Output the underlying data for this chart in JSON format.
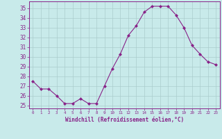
{
  "x": [
    0,
    1,
    2,
    3,
    4,
    5,
    6,
    7,
    8,
    9,
    10,
    11,
    12,
    13,
    14,
    15,
    16,
    17,
    18,
    19,
    20,
    21,
    22,
    23
  ],
  "y": [
    27.5,
    26.7,
    26.7,
    26.0,
    25.2,
    25.2,
    25.7,
    25.2,
    25.2,
    27.0,
    28.8,
    30.3,
    32.2,
    33.2,
    34.6,
    35.2,
    35.2,
    35.2,
    34.3,
    33.0,
    31.2,
    30.3,
    29.5,
    29.2
  ],
  "line_color": "#882288",
  "marker": "D",
  "marker_size": 2.0,
  "bg_color": "#c8eaea",
  "grid_color": "#aacccc",
  "xlabel": "Windchill (Refroidissement éolien,°C)",
  "ylabel_ticks": [
    25,
    26,
    27,
    28,
    29,
    30,
    31,
    32,
    33,
    34,
    35
  ],
  "ylim": [
    24.7,
    35.7
  ],
  "xlim": [
    -0.5,
    23.5
  ],
  "tick_color": "#882288",
  "label_color": "#882288",
  "axis_color": "#882288",
  "ytick_fontsize": 5.5,
  "xtick_fontsize": 4.2,
  "xlabel_fontsize": 5.5
}
